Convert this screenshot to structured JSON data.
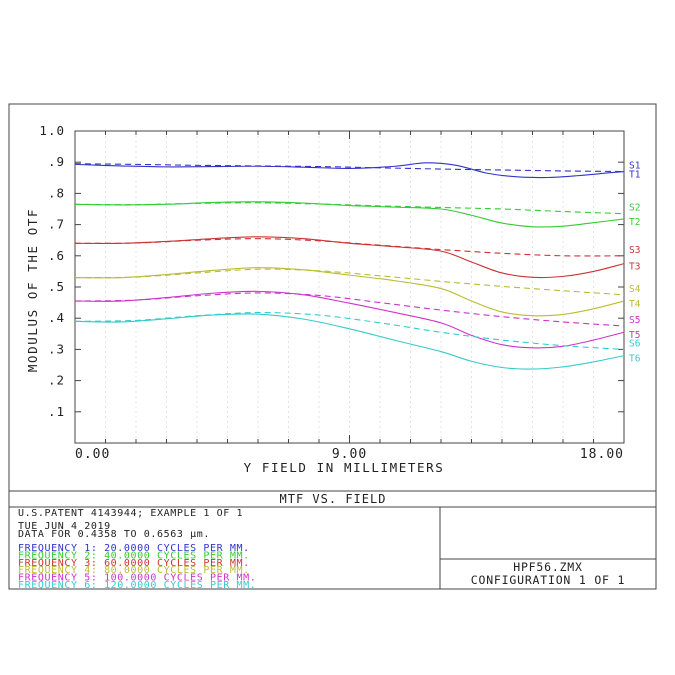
{
  "chart_data": {
    "type": "line",
    "title": "MTF VS. FIELD",
    "xlabel": "Y FIELD IN MILLIMETERS",
    "ylabel": "MODULUS OF THE OTF",
    "xlim": [
      0,
      18
    ],
    "ylim": [
      0,
      1.0
    ],
    "x_tick_labels": [
      "0.00",
      "9.00",
      "18.00"
    ],
    "y_tick_labels": [
      "1.0",
      ".9",
      ".8",
      ".7",
      ".6",
      ".5",
      ".4",
      ".3",
      ".2",
      ".1"
    ],
    "grid": "vertical dashed",
    "series": [
      {
        "name": "S1",
        "kind": "sagittal",
        "color": "#3333cc",
        "x": [
          0,
          2,
          4,
          6,
          8,
          10,
          12,
          14,
          16,
          18
        ],
        "y": [
          0.895,
          0.893,
          0.89,
          0.888,
          0.886,
          0.882,
          0.878,
          0.875,
          0.872,
          0.87
        ]
      },
      {
        "name": "T1",
        "kind": "tangential",
        "color": "#3333cc",
        "x": [
          0,
          1.5,
          3,
          4.5,
          6,
          7.5,
          9,
          10.5,
          11.5,
          12.5,
          13.5,
          14.5,
          15.5,
          16.5,
          17.5,
          18
        ],
        "y": [
          0.893,
          0.888,
          0.885,
          0.886,
          0.887,
          0.884,
          0.88,
          0.887,
          0.898,
          0.89,
          0.865,
          0.853,
          0.851,
          0.857,
          0.866,
          0.87
        ]
      },
      {
        "name": "S2",
        "kind": "sagittal",
        "color": "#33cc33",
        "x": [
          0,
          2,
          4,
          6,
          8,
          10,
          12,
          14,
          16,
          18
        ],
        "y": [
          0.765,
          0.764,
          0.768,
          0.77,
          0.766,
          0.76,
          0.755,
          0.75,
          0.742,
          0.735
        ]
      },
      {
        "name": "T2",
        "kind": "tangential",
        "color": "#33cc33",
        "x": [
          0,
          1.5,
          3,
          4.5,
          6,
          7.5,
          9,
          10.5,
          12,
          13,
          14,
          15,
          16,
          17,
          18
        ],
        "y": [
          0.765,
          0.763,
          0.765,
          0.771,
          0.773,
          0.769,
          0.761,
          0.756,
          0.75,
          0.73,
          0.705,
          0.693,
          0.695,
          0.706,
          0.718
        ]
      },
      {
        "name": "S3",
        "kind": "sagittal",
        "color": "#cc3333",
        "x": [
          0,
          2,
          4,
          6,
          8,
          10,
          12,
          14,
          16,
          18
        ],
        "y": [
          0.64,
          0.641,
          0.65,
          0.655,
          0.648,
          0.634,
          0.62,
          0.608,
          0.6,
          0.6
        ]
      },
      {
        "name": "T3",
        "kind": "tangential",
        "color": "#cc3333",
        "x": [
          0,
          1.5,
          3,
          4.5,
          6,
          7.5,
          9,
          10.5,
          12,
          13,
          14,
          15,
          16,
          17,
          18
        ],
        "y": [
          0.64,
          0.64,
          0.646,
          0.655,
          0.661,
          0.655,
          0.64,
          0.629,
          0.615,
          0.58,
          0.545,
          0.531,
          0.534,
          0.55,
          0.575
        ]
      },
      {
        "name": "S4",
        "kind": "sagittal",
        "color": "#bbbb33",
        "x": [
          0,
          2,
          4,
          6,
          8,
          10,
          12,
          14,
          16,
          18
        ],
        "y": [
          0.53,
          0.532,
          0.545,
          0.557,
          0.552,
          0.536,
          0.518,
          0.502,
          0.488,
          0.475
        ]
      },
      {
        "name": "T4",
        "kind": "tangential",
        "color": "#bbbb33",
        "x": [
          0,
          1.5,
          3,
          4.5,
          6,
          7.5,
          9,
          10.5,
          12,
          13,
          14,
          15,
          16,
          17,
          18
        ],
        "y": [
          0.53,
          0.53,
          0.54,
          0.553,
          0.562,
          0.555,
          0.538,
          0.52,
          0.495,
          0.455,
          0.42,
          0.408,
          0.412,
          0.43,
          0.455
        ]
      },
      {
        "name": "S5",
        "kind": "sagittal",
        "color": "#cc33cc",
        "x": [
          0,
          2,
          4,
          6,
          8,
          10,
          12,
          14,
          16,
          18
        ],
        "y": [
          0.455,
          0.458,
          0.472,
          0.481,
          0.473,
          0.45,
          0.426,
          0.405,
          0.388,
          0.375
        ]
      },
      {
        "name": "T5",
        "kind": "tangential",
        "color": "#cc33cc",
        "x": [
          0,
          1.5,
          3,
          4.5,
          6,
          7.5,
          9,
          10.5,
          12,
          13,
          14,
          15,
          16,
          17,
          18
        ],
        "y": [
          0.455,
          0.455,
          0.466,
          0.48,
          0.486,
          0.475,
          0.448,
          0.418,
          0.385,
          0.345,
          0.315,
          0.305,
          0.31,
          0.33,
          0.355
        ]
      },
      {
        "name": "S6",
        "kind": "sagittal",
        "color": "#33cccc",
        "x": [
          0,
          2,
          4,
          6,
          8,
          10,
          12,
          14,
          16,
          18
        ],
        "y": [
          0.39,
          0.393,
          0.408,
          0.418,
          0.41,
          0.385,
          0.355,
          0.33,
          0.312,
          0.3
        ]
      },
      {
        "name": "T6",
        "kind": "tangential",
        "color": "#33cccc",
        "x": [
          0,
          1.5,
          3,
          4.5,
          6,
          7.5,
          9,
          10.5,
          12,
          13,
          14,
          15,
          16,
          17,
          18
        ],
        "y": [
          0.39,
          0.388,
          0.398,
          0.41,
          0.413,
          0.397,
          0.366,
          0.329,
          0.293,
          0.262,
          0.242,
          0.237,
          0.244,
          0.26,
          0.28
        ]
      }
    ]
  },
  "info": {
    "line1": "U.S.PATENT 4143944; EXAMPLE 1 OF 1",
    "date": "TUE JUN 4 2019",
    "data_range": "DATA FOR 0.4358 TO 0.6563 µm.",
    "frequencies": [
      {
        "label": "FREQUENCY 1:  20.0000 CYCLES PER MM.",
        "color": "#3333cc"
      },
      {
        "label": "FREQUENCY 2:  40.0000 CYCLES PER MM.",
        "color": "#33cc33"
      },
      {
        "label": "FREQUENCY 3:  60.0000 CYCLES PER MM.",
        "color": "#cc3333"
      },
      {
        "label": "FREQUENCY 4:  80.0000 CYCLES PER MM.",
        "color": "#bbbb33"
      },
      {
        "label": "FREQUENCY 5: 100.0000 CYCLES PER MM.",
        "color": "#cc33cc"
      },
      {
        "label": "FREQUENCY 6: 120.0000 CYCLES PER MM.",
        "color": "#33cccc"
      }
    ]
  },
  "file": {
    "name": "HPF56.ZMX",
    "configuration": "CONFIGURATION 1 OF 1"
  }
}
